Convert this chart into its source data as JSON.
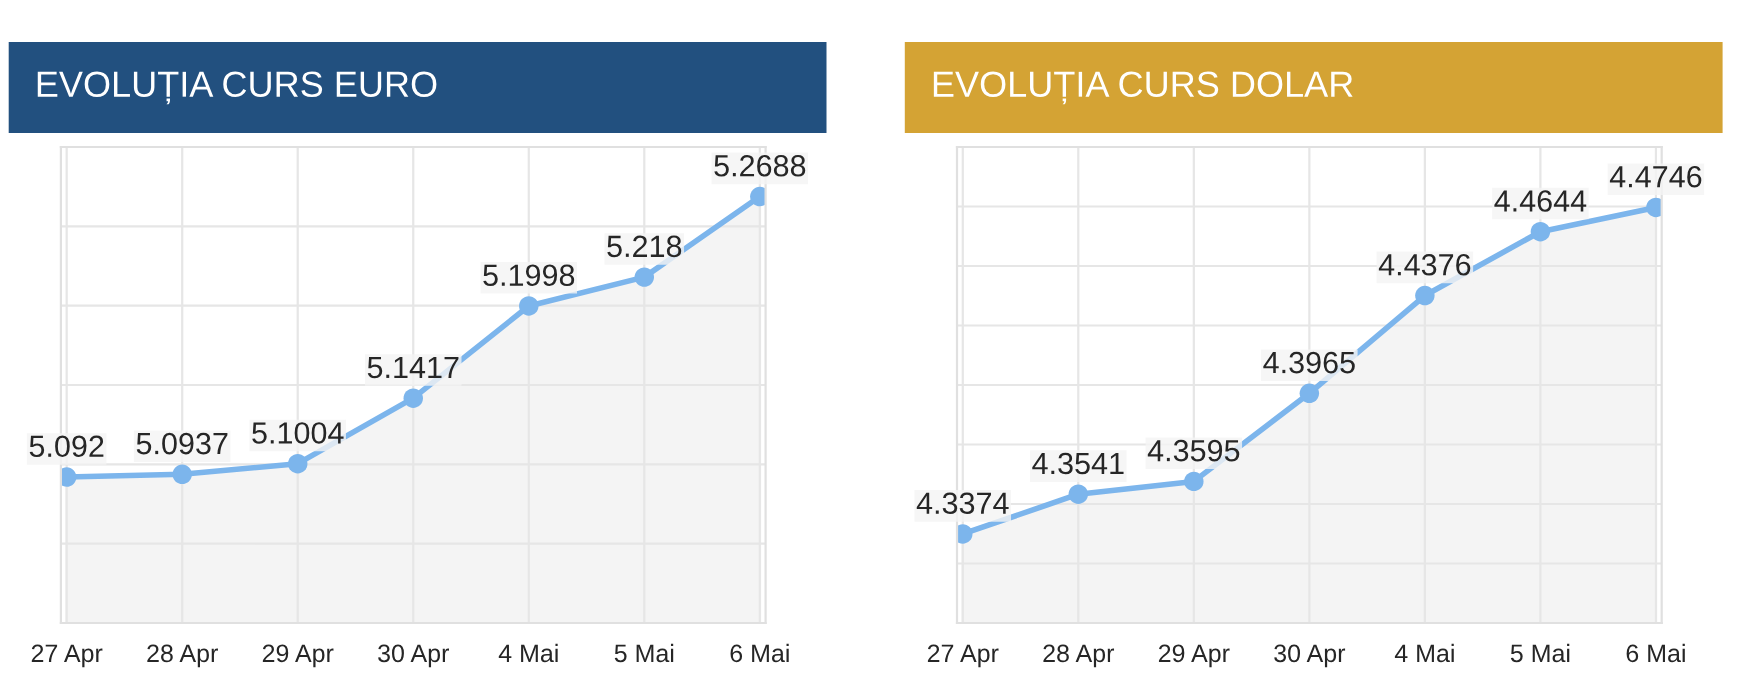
{
  "chart_data": [
    {
      "type": "area",
      "title": "EVOLUȚIA CURS EURO",
      "categories": [
        "27 Apr",
        "28 Apr",
        "29 Apr",
        "30 Apr",
        "4 Mai",
        "5 Mai",
        "6 Mai"
      ],
      "series": [
        {
          "color": "#7cb5ec",
          "values": [
            5.092,
            5.0937,
            5.1004,
            5.1417,
            5.1998,
            5.218,
            5.2688
          ]
        }
      ],
      "ylim": [
        5.0,
        5.3
      ],
      "yticks": [
        {
          "value": 5.0,
          "label": null
        },
        {
          "value": 5.05,
          "label": null
        },
        {
          "value": 5.1,
          "label": null
        },
        {
          "value": 5.15,
          "label": null
        },
        {
          "value": 5.2,
          "label": null
        },
        {
          "value": 5.25,
          "label": null
        },
        {
          "value": 5.3,
          "label": null
        }
      ],
      "tick_labels": "x",
      "grid": true,
      "marker": "circle",
      "data_labels": true,
      "legend": false
    },
    {
      "type": "area",
      "title": "EVOLUȚIA CURS DOLAR",
      "categories": [
        "27 Apr",
        "28 Apr",
        "29 Apr",
        "30 Apr",
        "4 Mai",
        "5 Mai",
        "6 Mai"
      ],
      "series": [
        {
          "color": "#7cb5ec",
          "values": [
            4.3374,
            4.3541,
            4.3595,
            4.3965,
            4.4376,
            4.4644,
            4.4746
          ]
        }
      ],
      "ylim": [
        4.3,
        4.5
      ],
      "yticks": [
        {
          "value": 4.3,
          "label": null
        },
        {
          "value": 4.325,
          "label": null
        },
        {
          "value": 4.35,
          "label": null
        },
        {
          "value": 4.375,
          "label": null
        },
        {
          "value": 4.4,
          "label": null
        },
        {
          "value": 4.425,
          "label": null
        },
        {
          "value": 4.45,
          "label": null
        },
        {
          "value": 4.475,
          "label": null
        },
        {
          "value": 4.5,
          "label": null
        }
      ],
      "tick_labels": "x",
      "grid": true,
      "marker": "circle",
      "data_labels": true,
      "legend": false
    }
  ]
}
